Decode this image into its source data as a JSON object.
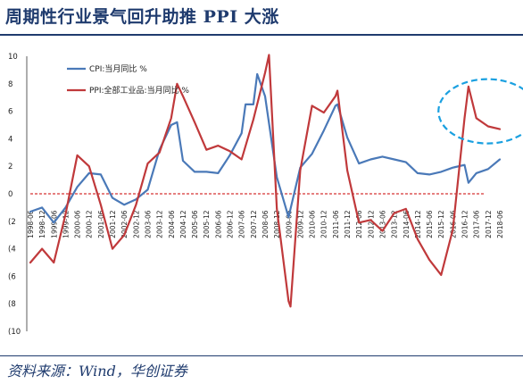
{
  "title": "周期性行业景气回升助推 PPI 大涨",
  "source": "资料来源：Wind，华创证券",
  "chart_data": {
    "type": "line",
    "title": "周期性行业景气回升助推 PPI 大涨",
    "xlabel": "",
    "ylabel": "",
    "ylim": [
      -10,
      10
    ],
    "yticks": [
      10,
      8,
      6,
      4,
      2,
      0,
      -2,
      -4,
      -6,
      -8,
      -10
    ],
    "ytick_labels": [
      "10",
      "8",
      "6",
      "4",
      "2",
      "0",
      "(2",
      "(4",
      "(6",
      "(8",
      "(10"
    ],
    "xticks": [
      "1998-06",
      "1998-12",
      "1999-06",
      "1999-12",
      "2000-06",
      "2000-12",
      "2001-06",
      "2001-12",
      "2002-06",
      "2002-12",
      "2003-06",
      "2003-12",
      "2004-06",
      "2004-12",
      "2005-06",
      "2005-12",
      "2006-06",
      "2006-12",
      "2007-06",
      "2007-12",
      "2008-06",
      "2008-12",
      "2009-06",
      "2009-12",
      "2010-06",
      "2010-12",
      "2011-06",
      "2011-12",
      "2012-06",
      "2012-12",
      "2013-06",
      "2013-12",
      "2014-06",
      "2014-12",
      "2015-06",
      "2015-12",
      "2016-06",
      "2016-12",
      "2017-06",
      "2017-12",
      "2018-06"
    ],
    "zero_line": {
      "value": 0,
      "style": "dashed",
      "color": "#cc0000"
    },
    "annotation": {
      "type": "dashed-ellipse",
      "color": "#1aa0e0",
      "around": "2016-12 to 2018-06"
    },
    "legend_position": "top-left",
    "grid": false,
    "series": [
      {
        "name": "CPI:当月同比 %",
        "color": "#4a79b8",
        "x": [
          "1998-06",
          "1998-12",
          "1999-06",
          "1999-12",
          "2000-06",
          "2000-12",
          "2001-06",
          "2001-12",
          "2002-06",
          "2002-12",
          "2003-06",
          "2003-12",
          "2004-06",
          "2004-09",
          "2004-12",
          "2005-06",
          "2005-12",
          "2006-06",
          "2006-12",
          "2007-06",
          "2007-08",
          "2007-12",
          "2008-02",
          "2008-06",
          "2008-12",
          "2009-06",
          "2009-12",
          "2010-06",
          "2010-12",
          "2011-06",
          "2011-07",
          "2011-12",
          "2012-06",
          "2012-12",
          "2013-06",
          "2013-12",
          "2014-06",
          "2014-12",
          "2015-06",
          "2015-12",
          "2016-06",
          "2016-12",
          "2017-02",
          "2017-06",
          "2017-12",
          "2018-06"
        ],
        "values": [
          -1.3,
          -1.0,
          -2.1,
          -1.0,
          0.5,
          1.5,
          1.4,
          -0.3,
          -0.8,
          -0.4,
          0.3,
          3.2,
          5.0,
          5.2,
          2.4,
          1.6,
          1.6,
          1.5,
          2.8,
          4.4,
          6.5,
          6.5,
          8.7,
          7.1,
          1.2,
          -1.7,
          1.9,
          2.9,
          4.6,
          6.4,
          6.5,
          4.1,
          2.2,
          2.5,
          2.7,
          2.5,
          2.3,
          1.5,
          1.4,
          1.6,
          1.9,
          2.1,
          0.8,
          1.5,
          1.8,
          2.5
        ]
      },
      {
        "name": "PPI:全部工业品:当月同比 %",
        "color": "#c0393b",
        "x": [
          "1998-06",
          "1998-12",
          "1999-06",
          "1999-12",
          "2000-06",
          "2000-12",
          "2001-06",
          "2001-12",
          "2002-06",
          "2002-12",
          "2003-06",
          "2003-12",
          "2004-06",
          "2004-09",
          "2004-12",
          "2005-06",
          "2005-12",
          "2006-06",
          "2006-12",
          "2007-06",
          "2007-12",
          "2008-06",
          "2008-08",
          "2008-12",
          "2009-06",
          "2009-07",
          "2009-12",
          "2010-06",
          "2010-12",
          "2011-06",
          "2011-07",
          "2011-12",
          "2012-06",
          "2012-12",
          "2013-06",
          "2013-12",
          "2014-06",
          "2014-12",
          "2015-06",
          "2015-12",
          "2016-06",
          "2016-12",
          "2017-02",
          "2017-06",
          "2017-12",
          "2018-06"
        ],
        "values": [
          -5.0,
          -4.0,
          -5.0,
          -1.5,
          2.8,
          2.0,
          -0.8,
          -4.0,
          -3.0,
          -0.8,
          2.2,
          3.0,
          5.5,
          8.0,
          7.1,
          5.2,
          3.2,
          3.5,
          3.1,
          2.5,
          5.4,
          8.8,
          10.1,
          -1.1,
          -7.8,
          -8.2,
          1.7,
          6.4,
          5.9,
          7.1,
          7.5,
          1.7,
          -2.1,
          -1.9,
          -2.7,
          -1.4,
          -1.1,
          -3.3,
          -4.8,
          -5.9,
          -2.6,
          5.5,
          7.8,
          5.5,
          4.9,
          4.7
        ]
      }
    ]
  }
}
